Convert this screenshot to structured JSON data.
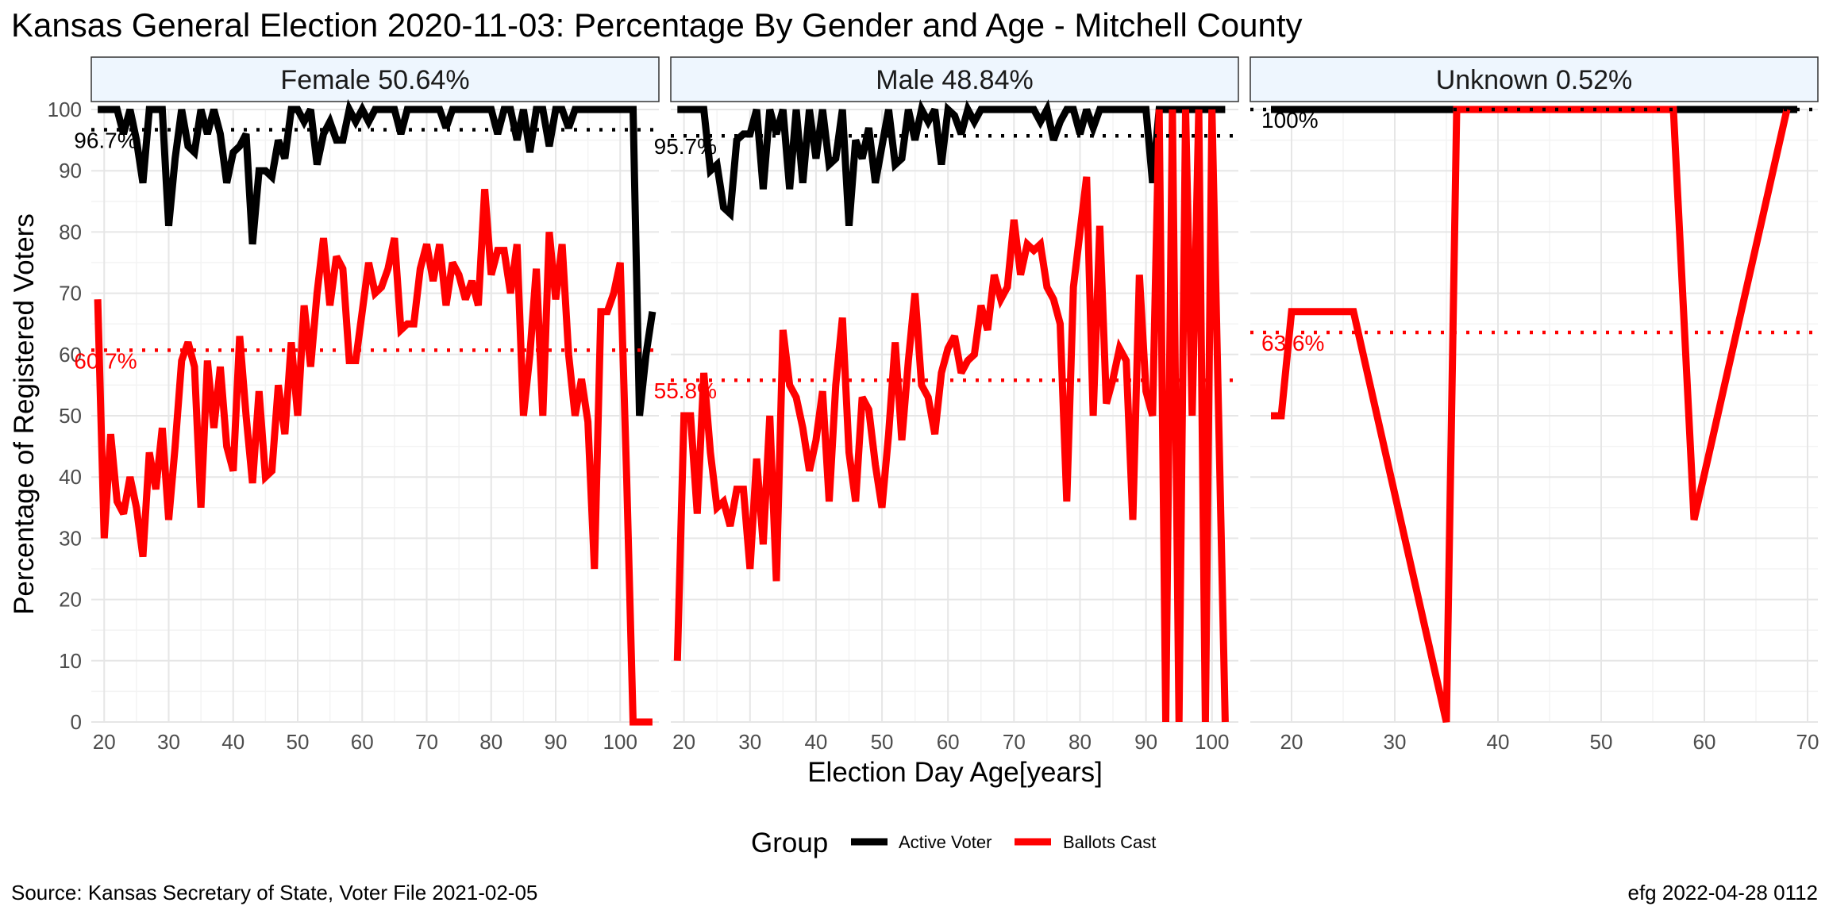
{
  "title": "Kansas General Election 2020-11-03:  Percentage By Gender and Age - Mitchell County",
  "caption_left": "Source:  Kansas Secretary of State, Voter File  2021-02-05",
  "caption_right": "efg 2022-04-28 0112",
  "chart_data": {
    "type": "line",
    "xlabel": "Election Day Age[years]",
    "ylabel": "Percentage of Registered Voters",
    "ylim": [
      0,
      100
    ],
    "yticks": [
      0,
      10,
      20,
      30,
      40,
      50,
      60,
      70,
      80,
      90,
      100
    ],
    "grid": true,
    "legend": {
      "title": "Group",
      "position": "bottom",
      "entries": [
        {
          "label": "Active Voter",
          "color": "#000000"
        },
        {
          "label": "Ballots Cast",
          "color": "#ff0000"
        }
      ]
    },
    "panels": [
      {
        "label": "Female 50.64%",
        "xlim": [
          18,
          106
        ],
        "xticks": [
          20,
          30,
          40,
          50,
          60,
          70,
          80,
          90,
          100
        ],
        "active_mean": {
          "value": 96.7,
          "label": "96.7%"
        },
        "ballots_mean": {
          "value": 60.7,
          "label": "60.7%"
        },
        "series": [
          {
            "name": "Active Voter",
            "color": "#000000",
            "x": [
              19,
              20,
              21,
              22,
              23,
              24,
              25,
              26,
              27,
              28,
              29,
              30,
              31,
              32,
              33,
              34,
              35,
              36,
              37,
              38,
              39,
              40,
              41,
              42,
              43,
              44,
              45,
              46,
              47,
              48,
              49,
              50,
              51,
              52,
              53,
              54,
              55,
              56,
              57,
              58,
              59,
              60,
              61,
              62,
              63,
              64,
              65,
              66,
              67,
              68,
              69,
              70,
              71,
              72,
              73,
              74,
              75,
              76,
              77,
              78,
              79,
              80,
              81,
              82,
              83,
              84,
              85,
              86,
              87,
              88,
              89,
              90,
              91,
              92,
              93,
              94,
              95,
              96,
              97,
              98,
              99,
              100,
              101,
              102,
              103,
              104,
              105
            ],
            "y": [
              100,
              100,
              100,
              100,
              96,
              100,
              95,
              88,
              100,
              100,
              100,
              81,
              92,
              100,
              94,
              93,
              100,
              96,
              100,
              96,
              88,
              93,
              94,
              96,
              78,
              90,
              90,
              89,
              95,
              92,
              100,
              100,
              98,
              100,
              91,
              96,
              98,
              95,
              95,
              100,
              98,
              100,
              98,
              100,
              100,
              100,
              100,
              96,
              100,
              100,
              100,
              100,
              100,
              100,
              97,
              100,
              100,
              100,
              100,
              100,
              100,
              100,
              96,
              100,
              100,
              95,
              100,
              93,
              100,
              100,
              94,
              100,
              100,
              97,
              100,
              100,
              100,
              100,
              100,
              100,
              100,
              100,
              100,
              100,
              50,
              60,
              67
            ]
          },
          {
            "name": "Ballots Cast",
            "color": "#ff0000",
            "x": [
              19,
              20,
              21,
              22,
              23,
              24,
              25,
              26,
              27,
              28,
              29,
              30,
              31,
              32,
              33,
              34,
              35,
              36,
              37,
              38,
              39,
              40,
              41,
              42,
              43,
              44,
              45,
              46,
              47,
              48,
              49,
              50,
              51,
              52,
              53,
              54,
              55,
              56,
              57,
              58,
              59,
              60,
              61,
              62,
              63,
              64,
              65,
              66,
              67,
              68,
              69,
              70,
              71,
              72,
              73,
              74,
              75,
              76,
              77,
              78,
              79,
              80,
              81,
              82,
              83,
              84,
              85,
              86,
              87,
              88,
              89,
              90,
              91,
              92,
              93,
              94,
              95,
              96,
              97,
              98,
              99,
              100,
              101,
              102,
              103,
              104,
              105
            ],
            "y": [
              69,
              30,
              47,
              36,
              34,
              40,
              35,
              27,
              44,
              38,
              48,
              33,
              45,
              59,
              62,
              58,
              35,
              59,
              48,
              58,
              45,
              41,
              63,
              50,
              39,
              54,
              40,
              41,
              55,
              47,
              62,
              50,
              68,
              58,
              70,
              79,
              68,
              76,
              74,
              59,
              59,
              67,
              75,
              70,
              71,
              74,
              79,
              64,
              65,
              65,
              74,
              78,
              72,
              78,
              68,
              75,
              73,
              69,
              72,
              68,
              87,
              73,
              77,
              77,
              70,
              78,
              50,
              60,
              74,
              50,
              80,
              69,
              78,
              60,
              50,
              56,
              49,
              25,
              67,
              67,
              70,
              75,
              40,
              0,
              0,
              0,
              0
            ]
          }
        ]
      },
      {
        "label": "Male 48.84%",
        "xlim": [
          18,
          104
        ],
        "xticks": [
          20,
          30,
          40,
          50,
          60,
          70,
          80,
          90,
          100
        ],
        "active_mean": {
          "value": 95.7,
          "label": "95.7%"
        },
        "ballots_mean": {
          "value": 55.8,
          "label": "55.8%"
        },
        "series": [
          {
            "name": "Active Voter",
            "color": "#000000",
            "x": [
              19,
              20,
              21,
              22,
              23,
              24,
              25,
              26,
              27,
              28,
              29,
              30,
              31,
              32,
              33,
              34,
              35,
              36,
              37,
              38,
              39,
              40,
              41,
              42,
              43,
              44,
              45,
              46,
              47,
              48,
              49,
              50,
              51,
              52,
              53,
              54,
              55,
              56,
              57,
              58,
              59,
              60,
              61,
              62,
              63,
              64,
              65,
              66,
              67,
              68,
              69,
              70,
              71,
              72,
              73,
              74,
              75,
              76,
              77,
              78,
              79,
              80,
              81,
              82,
              83,
              84,
              85,
              86,
              87,
              88,
              89,
              90,
              91,
              92,
              93,
              94,
              95,
              96,
              97,
              98,
              99,
              100,
              101,
              102
            ],
            "y": [
              100,
              100,
              100,
              100,
              100,
              90,
              91,
              84,
              83,
              95,
              96,
              96,
              100,
              87,
              100,
              96,
              100,
              87,
              100,
              88,
              100,
              92,
              100,
              91,
              92,
              100,
              81,
              95,
              92,
              97,
              88,
              94,
              100,
              91,
              92,
              100,
              95,
              100,
              98,
              100,
              91,
              100,
              99,
              96,
              100,
              98,
              100,
              100,
              100,
              100,
              100,
              100,
              100,
              100,
              100,
              98,
              100,
              95,
              98,
              100,
              100,
              96,
              100,
              97,
              100,
              100,
              100,
              100,
              100,
              100,
              100,
              100,
              88,
              100,
              100,
              100,
              100,
              100,
              100,
              100,
              100,
              100,
              100,
              100
            ]
          },
          {
            "name": "Ballots Cast",
            "color": "#ff0000",
            "x": [
              19,
              20,
              21,
              22,
              23,
              24,
              25,
              26,
              27,
              28,
              29,
              30,
              31,
              32,
              33,
              34,
              35,
              36,
              37,
              38,
              39,
              40,
              41,
              42,
              43,
              44,
              45,
              46,
              47,
              48,
              49,
              50,
              51,
              52,
              53,
              54,
              55,
              56,
              57,
              58,
              59,
              60,
              61,
              62,
              63,
              64,
              65,
              66,
              67,
              68,
              69,
              70,
              71,
              72,
              73,
              74,
              75,
              76,
              77,
              78,
              79,
              80,
              81,
              82,
              83,
              84,
              85,
              86,
              87,
              88,
              89,
              90,
              91,
              92,
              93,
              94,
              95,
              96,
              97,
              98,
              99,
              100,
              101,
              102
            ],
            "y": [
              10,
              50,
              50,
              34,
              57,
              44,
              35,
              36,
              32,
              38,
              38,
              25,
              43,
              29,
              50,
              23,
              64,
              55,
              53,
              48,
              41,
              46,
              54,
              36,
              55,
              66,
              44,
              36,
              53,
              51,
              42,
              35,
              47,
              62,
              46,
              59,
              70,
              55,
              53,
              47,
              57,
              61,
              63,
              57,
              59,
              60,
              68,
              64,
              73,
              69,
              71,
              82,
              73,
              78,
              77,
              78,
              71,
              69,
              65,
              36,
              71,
              80,
              89,
              50,
              81,
              52,
              56,
              61,
              59,
              33,
              73,
              54,
              50,
              100,
              0,
              100,
              0,
              100,
              50,
              100,
              0,
              100,
              50,
              0
            ]
          }
        ]
      },
      {
        "label": "Unknown 0.52%",
        "xlim": [
          16,
          71
        ],
        "xticks": [
          20,
          30,
          40,
          50,
          60,
          70
        ],
        "active_mean": {
          "value": 100,
          "label": "100%"
        },
        "ballots_mean": {
          "value": 63.6,
          "label": "63.6%"
        },
        "series": [
          {
            "name": "Active Voter",
            "color": "#000000",
            "x": [
              18,
              69
            ],
            "y": [
              100,
              100
            ]
          },
          {
            "name": "Ballots Cast",
            "color": "#ff0000",
            "x": [
              18,
              19,
              20,
              26,
              35,
              36,
              57,
              59,
              68
            ],
            "y": [
              50,
              50,
              67,
              67,
              0,
              100,
              100,
              33,
              100
            ]
          }
        ]
      }
    ]
  }
}
